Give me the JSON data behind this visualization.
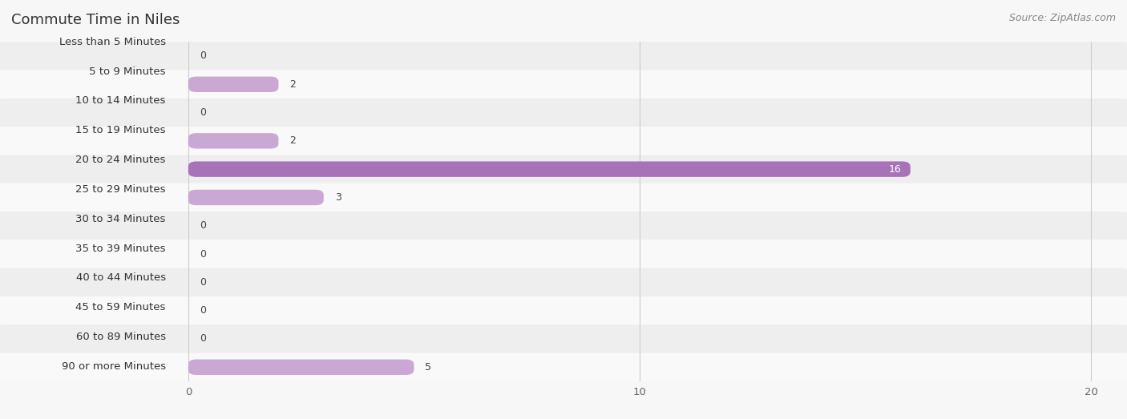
{
  "title": "Commute Time in Niles",
  "source": "Source: ZipAtlas.com",
  "categories": [
    "Less than 5 Minutes",
    "5 to 9 Minutes",
    "10 to 14 Minutes",
    "15 to 19 Minutes",
    "20 to 24 Minutes",
    "25 to 29 Minutes",
    "30 to 34 Minutes",
    "35 to 39 Minutes",
    "40 to 44 Minutes",
    "45 to 59 Minutes",
    "60 to 89 Minutes",
    "90 or more Minutes"
  ],
  "values": [
    0,
    2,
    0,
    2,
    16,
    3,
    0,
    0,
    0,
    0,
    0,
    5
  ],
  "bar_color_normal": "#c9a8d4",
  "bar_color_highlight": "#a872b8",
  "highlight_index": 4,
  "xlim_max": 20,
  "xticks": [
    0,
    10,
    20
  ],
  "bg_color": "#f7f7f7",
  "row_even_color": "#eeeeee",
  "row_odd_color": "#f9f9f9",
  "title_fontsize": 13,
  "label_fontsize": 9.5,
  "value_fontsize": 9,
  "source_fontsize": 9
}
